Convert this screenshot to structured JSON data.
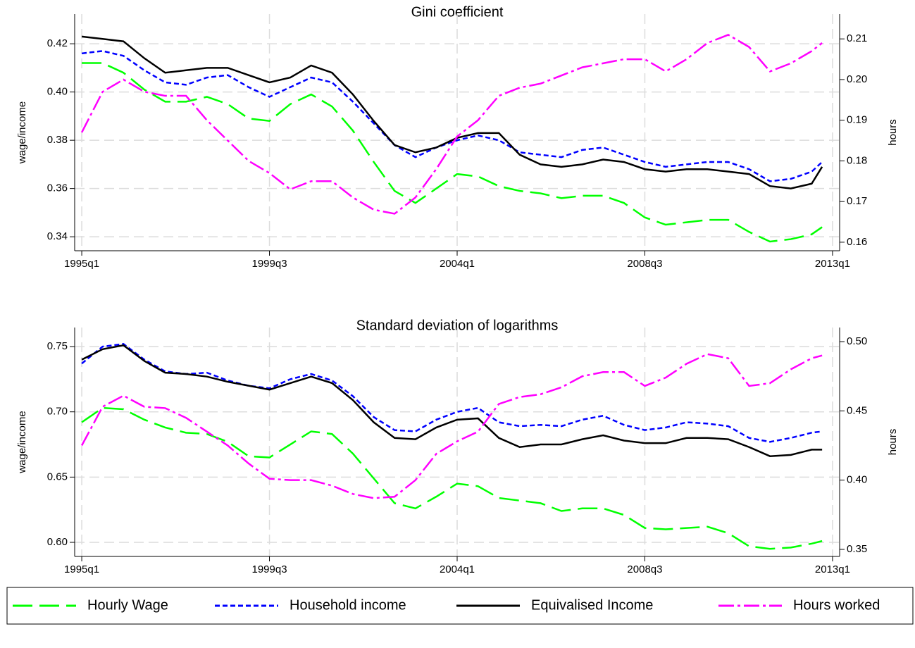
{
  "chart_data": [
    {
      "type": "line",
      "title": "Gini coefficient",
      "y_label": "wage/income",
      "y2_label": "hours",
      "grid": true,
      "legend": "bottom",
      "x": [
        1995,
        1995.5,
        1996,
        1996.5,
        1997,
        1997.5,
        1998,
        1998.5,
        1999,
        1999.5,
        2000,
        2000.5,
        2001,
        2001.5,
        2002,
        2002.5,
        2003,
        2003.5,
        2004,
        2004.5,
        2005,
        2005.5,
        2006,
        2006.5,
        2007,
        2007.5,
        2008,
        2008.5,
        2009,
        2009.5,
        2010,
        2010.5,
        2011,
        2011.5,
        2012,
        2012.5,
        2012.75
      ],
      "xlim": [
        1994.83,
        2013.17
      ],
      "xticks": [
        {
          "value": 1995,
          "label": "1995q1"
        },
        {
          "value": 1999.5,
          "label": "1999q3"
        },
        {
          "value": 2004,
          "label": "2004q1"
        },
        {
          "value": 2008.5,
          "label": "2008q3"
        },
        {
          "value": 2013,
          "label": "2013q1"
        }
      ],
      "ylim": [
        0.3342,
        0.4323
      ],
      "yticks": [
        0.34,
        0.36,
        0.38,
        {
          "value": 0.4,
          "label": "0.40"
        },
        0.42
      ],
      "y2lim": [
        0.1579,
        0.2161
      ],
      "y2ticks": [
        0.16,
        0.17,
        0.18,
        0.19,
        {
          "value": 0.2,
          "label": "0.20"
        },
        0.21
      ],
      "series": [
        {
          "name": "Hourly Wage",
          "color": "#00ff00",
          "dash": "28 10",
          "axis": "y",
          "values": [
            0.412,
            0.412,
            0.408,
            0.401,
            0.396,
            0.396,
            0.398,
            0.395,
            0.389,
            0.388,
            0.395,
            0.399,
            0.394,
            0.384,
            0.371,
            0.359,
            0.354,
            0.36,
            0.366,
            0.365,
            0.361,
            0.359,
            0.358,
            0.356,
            0.357,
            0.357,
            0.354,
            0.348,
            0.345,
            0.346,
            0.347,
            0.347,
            0.342,
            0.338,
            0.339,
            0.341,
            0.344
          ]
        },
        {
          "name": "Household income",
          "color": "#0000ff",
          "dash": "7 4",
          "axis": "y",
          "values": [
            0.416,
            0.417,
            0.415,
            0.409,
            0.404,
            0.403,
            0.406,
            0.407,
            0.402,
            0.398,
            0.402,
            0.406,
            0.404,
            0.396,
            0.387,
            0.378,
            0.373,
            0.377,
            0.38,
            0.382,
            0.38,
            0.375,
            0.374,
            0.373,
            0.376,
            0.377,
            0.374,
            0.371,
            0.369,
            0.37,
            0.371,
            0.371,
            0.368,
            0.363,
            0.364,
            0.367,
            0.371
          ]
        },
        {
          "name": "Equivalised Income",
          "color": "#000000",
          "dash": "none",
          "axis": "y",
          "values": [
            0.423,
            0.422,
            0.421,
            0.414,
            0.408,
            0.409,
            0.41,
            0.41,
            0.407,
            0.404,
            0.406,
            0.411,
            0.408,
            0.399,
            0.388,
            0.378,
            0.375,
            0.377,
            0.381,
            0.383,
            0.383,
            0.374,
            0.37,
            0.369,
            0.37,
            0.372,
            0.371,
            0.368,
            0.367,
            0.368,
            0.368,
            0.367,
            0.366,
            0.361,
            0.36,
            0.362,
            0.369
          ]
        },
        {
          "name": "Hours worked",
          "color": "#ff00ff",
          "dash": "22 5 4 5",
          "axis": "y2",
          "values": [
            0.187,
            0.197,
            0.2,
            0.197,
            0.196,
            0.196,
            0.19,
            0.185,
            0.18,
            0.177,
            0.173,
            0.175,
            0.175,
            0.171,
            0.168,
            0.167,
            0.171,
            0.178,
            0.186,
            0.19,
            0.196,
            0.198,
            0.199,
            0.201,
            0.203,
            0.204,
            0.205,
            0.205,
            0.202,
            0.205,
            0.209,
            0.211,
            0.208,
            0.202,
            0.204,
            0.207,
            0.209
          ]
        }
      ]
    },
    {
      "type": "line",
      "title": "Standard deviation of logarithms",
      "y_label": "wage/income",
      "y2_label": "hours",
      "grid": true,
      "legend": "bottom",
      "x": [
        1995,
        1995.5,
        1996,
        1996.5,
        1997,
        1997.5,
        1998,
        1998.5,
        1999,
        1999.5,
        2000,
        2000.5,
        2001,
        2001.5,
        2002,
        2002.5,
        2003,
        2003.5,
        2004,
        2004.5,
        2005,
        2005.5,
        2006,
        2006.5,
        2007,
        2007.5,
        2008,
        2008.5,
        2009,
        2009.5,
        2010,
        2010.5,
        2011,
        2011.5,
        2012,
        2012.5,
        2012.75
      ],
      "xlim": [
        1994.83,
        2013.17
      ],
      "xticks": [
        {
          "value": 1995,
          "label": "1995q1"
        },
        {
          "value": 1999.5,
          "label": "1999q3"
        },
        {
          "value": 2004,
          "label": "2004q1"
        },
        {
          "value": 2008.5,
          "label": "2008q3"
        },
        {
          "value": 2013,
          "label": "2013q1"
        }
      ],
      "ylim": [
        0.5892,
        0.7646
      ],
      "yticks": [
        {
          "value": 0.6,
          "label": "0.60"
        },
        0.65,
        {
          "value": 0.7,
          "label": "0.70"
        },
        0.75
      ],
      "y2lim": [
        0.3449,
        0.5102
      ],
      "y2ticks": [
        0.35,
        {
          "value": 0.4,
          "label": "0.40"
        },
        0.45,
        {
          "value": 0.5,
          "label": "0.50"
        }
      ],
      "series": [
        {
          "name": "Hourly Wage",
          "color": "#00ff00",
          "dash": "28 10",
          "axis": "y",
          "values": [
            0.692,
            0.703,
            0.702,
            0.694,
            0.688,
            0.684,
            0.683,
            0.677,
            0.666,
            0.665,
            0.675,
            0.685,
            0.683,
            0.668,
            0.649,
            0.63,
            0.626,
            0.635,
            0.645,
            0.643,
            0.634,
            0.632,
            0.63,
            0.624,
            0.626,
            0.626,
            0.621,
            0.611,
            0.61,
            0.611,
            0.612,
            0.607,
            0.597,
            0.595,
            0.596,
            0.599,
            0.601
          ]
        },
        {
          "name": "Household income",
          "color": "#0000ff",
          "dash": "7 4",
          "axis": "y",
          "values": [
            0.737,
            0.75,
            0.752,
            0.74,
            0.731,
            0.729,
            0.73,
            0.724,
            0.72,
            0.718,
            0.725,
            0.729,
            0.724,
            0.712,
            0.696,
            0.686,
            0.685,
            0.694,
            0.7,
            0.703,
            0.692,
            0.689,
            0.69,
            0.689,
            0.694,
            0.697,
            0.69,
            0.686,
            0.688,
            0.692,
            0.691,
            0.689,
            0.68,
            0.677,
            0.68,
            0.684,
            0.685
          ]
        },
        {
          "name": "Equivalised Income",
          "color": "#000000",
          "dash": "none",
          "axis": "y",
          "values": [
            0.74,
            0.748,
            0.751,
            0.739,
            0.73,
            0.729,
            0.727,
            0.723,
            0.72,
            0.717,
            0.722,
            0.727,
            0.722,
            0.709,
            0.692,
            0.68,
            0.679,
            0.688,
            0.694,
            0.695,
            0.68,
            0.673,
            0.675,
            0.675,
            0.679,
            0.682,
            0.678,
            0.676,
            0.676,
            0.68,
            0.68,
            0.679,
            0.673,
            0.666,
            0.667,
            0.671,
            0.671
          ]
        },
        {
          "name": "Hours worked",
          "color": "#ff00ff",
          "dash": "22 5 4 5",
          "axis": "y2",
          "values": [
            0.425,
            0.453,
            0.461,
            0.453,
            0.452,
            0.445,
            0.435,
            0.425,
            0.412,
            0.401,
            0.4,
            0.4,
            0.396,
            0.39,
            0.387,
            0.388,
            0.4,
            0.419,
            0.428,
            0.435,
            0.455,
            0.46,
            0.462,
            0.467,
            0.475,
            0.478,
            0.478,
            0.468,
            0.474,
            0.484,
            0.491,
            0.488,
            0.468,
            0.47,
            0.48,
            0.488,
            0.49
          ]
        }
      ]
    }
  ]
}
